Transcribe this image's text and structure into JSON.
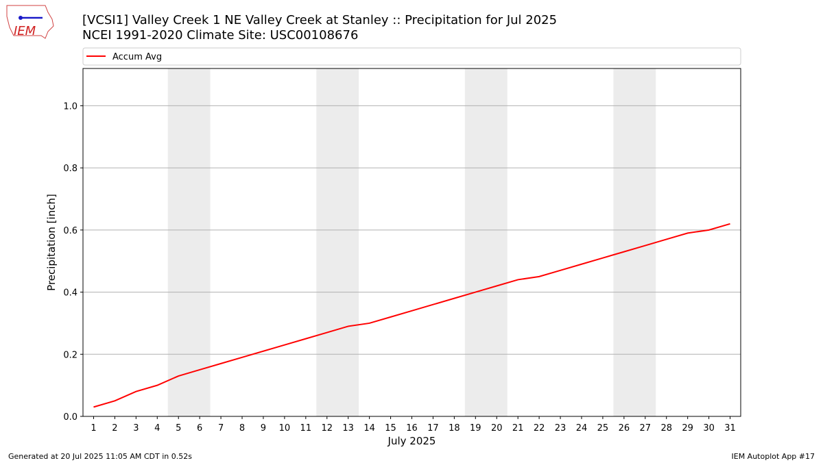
{
  "logo": {
    "text": "IEM"
  },
  "footer": {
    "left": "Generated at 20 Jul 2025 11:05 AM CDT in 0.52s",
    "right": "IEM Autoplot App #17"
  },
  "chart_data": {
    "type": "line",
    "title": "[VCSI1] Valley Creek 1 NE Valley Creek at Stanley :: Precipitation for Jul 2025",
    "subtitle": "NCEI 1991-2020 Climate Site: USC00108676",
    "xlabel": "July 2025",
    "ylabel": "Precipitation [inch]",
    "x": [
      1,
      2,
      3,
      4,
      5,
      6,
      7,
      8,
      9,
      10,
      11,
      12,
      13,
      14,
      15,
      16,
      17,
      18,
      19,
      20,
      21,
      22,
      23,
      24,
      25,
      26,
      27,
      28,
      29,
      30,
      31
    ],
    "series": [
      {
        "name": "Accum Avg",
        "color": "#ff0000",
        "values": [
          0.03,
          0.05,
          0.08,
          0.1,
          0.13,
          0.15,
          0.17,
          0.19,
          0.21,
          0.23,
          0.25,
          0.27,
          0.29,
          0.3,
          0.32,
          0.34,
          0.36,
          0.38,
          0.4,
          0.42,
          0.44,
          0.45,
          0.47,
          0.49,
          0.51,
          0.53,
          0.55,
          0.57,
          0.59,
          0.6,
          0.62
        ]
      }
    ],
    "shaded_ranges": [
      [
        4.5,
        6.5
      ],
      [
        11.5,
        13.5
      ],
      [
        18.5,
        20.5
      ],
      [
        25.5,
        27.5
      ]
    ],
    "shade_color": "#ececec",
    "xlim": [
      0.5,
      31.5
    ],
    "ylim": [
      0,
      1.12
    ],
    "xticks": [
      1,
      2,
      3,
      4,
      5,
      6,
      7,
      8,
      9,
      10,
      11,
      12,
      13,
      14,
      15,
      16,
      17,
      18,
      19,
      20,
      21,
      22,
      23,
      24,
      25,
      26,
      27,
      28,
      29,
      30,
      31
    ],
    "yticks": [
      {
        "value": 0,
        "label": "0.0"
      },
      0.2,
      0.4,
      0.6,
      0.8,
      {
        "value": 1,
        "label": "1.0"
      }
    ],
    "grid": true,
    "legend": "top"
  }
}
